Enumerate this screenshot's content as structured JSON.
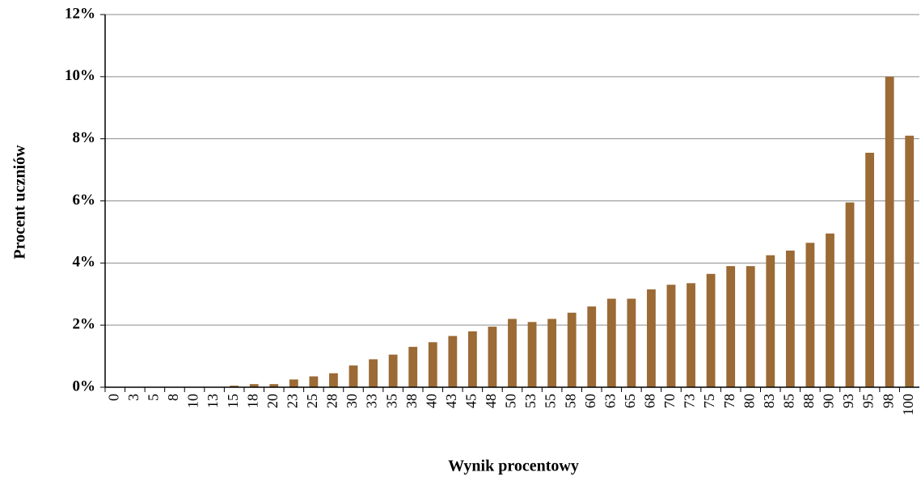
{
  "chart_data": {
    "type": "bar",
    "x_label": "Wynik procentowy",
    "y_label": "Procent uczniów",
    "categories": [
      "0",
      "3",
      "5",
      "8",
      "10",
      "13",
      "15",
      "18",
      "20",
      "23",
      "25",
      "28",
      "30",
      "33",
      "35",
      "38",
      "40",
      "43",
      "45",
      "48",
      "50",
      "53",
      "55",
      "58",
      "60",
      "63",
      "65",
      "68",
      "70",
      "73",
      "75",
      "78",
      "80",
      "83",
      "85",
      "88",
      "90",
      "93",
      "95",
      "98",
      "100"
    ],
    "values": [
      0,
      0,
      0,
      0,
      0,
      0,
      0.05,
      0.1,
      0.1,
      0.25,
      0.35,
      0.45,
      0.7,
      0.9,
      1.05,
      1.3,
      1.45,
      1.65,
      1.8,
      1.95,
      2.2,
      2.1,
      2.2,
      2.4,
      2.6,
      2.85,
      2.85,
      3.15,
      3.3,
      3.35,
      3.65,
      3.9,
      3.9,
      4.25,
      4.4,
      4.65,
      4.95,
      5.95,
      7.55,
      10,
      8.1
    ],
    "color": "#9b6a35",
    "ylim": [
      0,
      12
    ],
    "yticks": [
      {
        "value": 0,
        "label": "0%"
      },
      {
        "value": 2,
        "label": "2%"
      },
      {
        "value": 4,
        "label": "4%"
      },
      {
        "value": 6,
        "label": "6%"
      },
      {
        "value": 8,
        "label": "8%"
      },
      {
        "value": 10,
        "label": "10%"
      },
      {
        "value": 12,
        "label": "12%"
      }
    ],
    "grid": true
  }
}
